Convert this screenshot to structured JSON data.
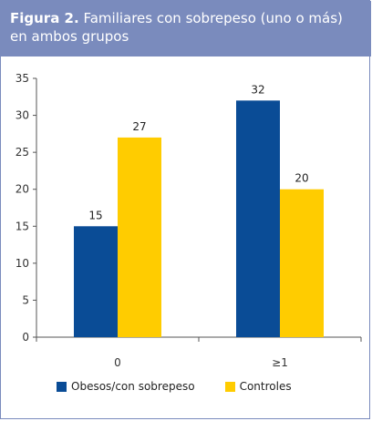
{
  "figure": {
    "label": "Figura 2.",
    "caption": "Familiares con sobrepeso (uno o más) en ambos grupos"
  },
  "colors": {
    "header_bg": "#7a8bbd",
    "series_obesos": "#0a4c96",
    "series_controles": "#ffcc00"
  },
  "chart_data": {
    "type": "bar",
    "categories": [
      "0",
      "≥1"
    ],
    "series": [
      {
        "name": "Obesos/con sobrepeso",
        "values": [
          15,
          32
        ]
      },
      {
        "name": "Controles",
        "values": [
          27,
          20
        ]
      }
    ],
    "ylim": [
      0,
      35
    ],
    "yticks": [
      0,
      5,
      10,
      15,
      20,
      25,
      30,
      35
    ],
    "grid": false,
    "legend_position": "bottom-left"
  }
}
